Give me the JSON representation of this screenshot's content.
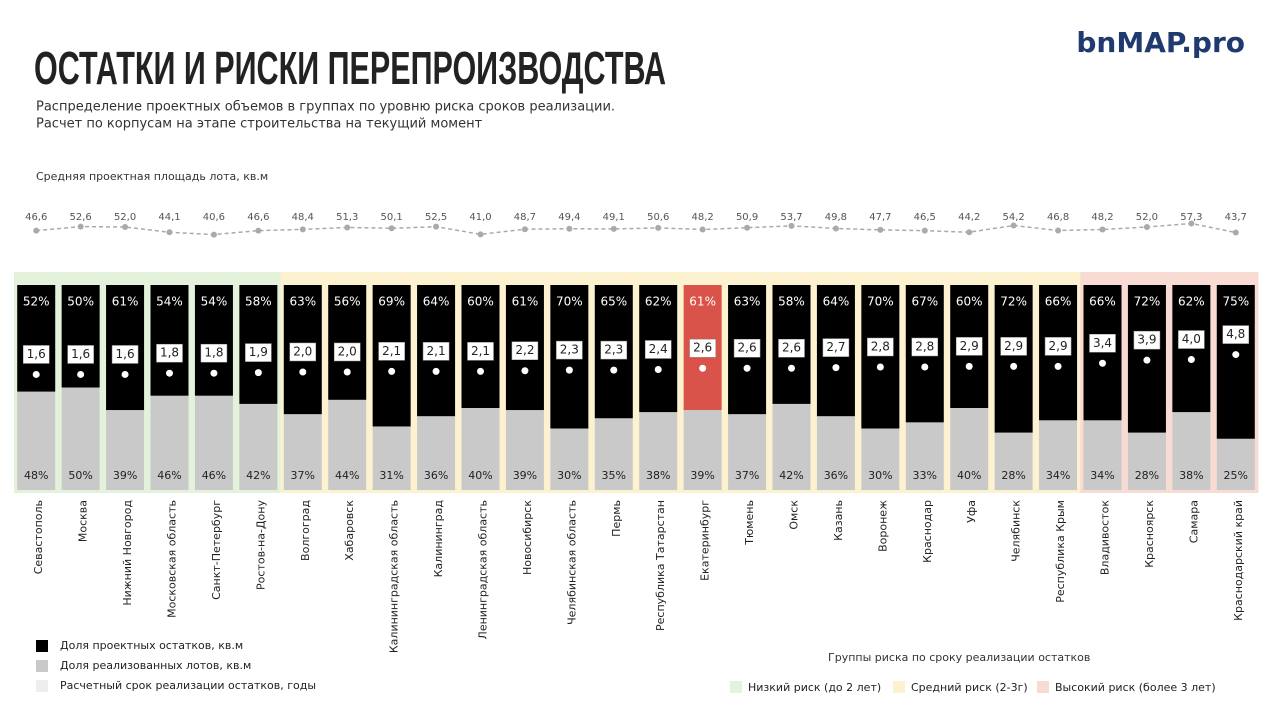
{
  "chart_data": {
    "type": "bar",
    "stacked": true,
    "title": "ОСТАТКИ И РИСКИ ПЕРЕПРОИЗВОДСТВА",
    "subtitle": [
      "Распределение проектных объемов в группах по уровню риска сроков реализации.",
      "Расчет по корпусам на этапе строительства на текущий момент"
    ],
    "logo": "bnMAP.pro",
    "categories": [
      "Севастополь",
      "Москва",
      "Нижний Новгород",
      "Московская область",
      "Санкт-Петербург",
      "Ростов-на-Дону",
      "Волгоград",
      "Хабаровск",
      "Калининградская область",
      "Калининград",
      "Ленинградская область",
      "Новосибирск",
      "Челябинская область",
      "Пермь",
      "Республика Татарстан",
      "Екатеринбург",
      "Тюмень",
      "Омск",
      "Казань",
      "Воронеж",
      "Краснодар",
      "Уфа",
      "Челябинск",
      "Республика Крым",
      "Владивосток",
      "Красноярск",
      "Самара",
      "Краснодарский край"
    ],
    "series": [
      {
        "name": "Доля проектных остатков, кв.м",
        "color": "#000000",
        "values": [
          52,
          50,
          61,
          54,
          54,
          58,
          63,
          56,
          69,
          64,
          60,
          61,
          70,
          65,
          62,
          61,
          63,
          58,
          64,
          70,
          67,
          60,
          72,
          66,
          66,
          72,
          62,
          75
        ],
        "value_labels": [
          "52%",
          "50%",
          "61%",
          "54%",
          "54%",
          "58%",
          "63%",
          "56%",
          "69%",
          "64%",
          "60%",
          "61%",
          "70%",
          "65%",
          "62%",
          "61%",
          "63%",
          "58%",
          "64%",
          "70%",
          "67%",
          "60%",
          "72%",
          "66%",
          "66%",
          "72%",
          "62%",
          "75%"
        ]
      },
      {
        "name": "Доля реализованных лотов, кв.м",
        "color": "#c9c9c9",
        "values": [
          48,
          50,
          39,
          46,
          46,
          42,
          37,
          44,
          31,
          36,
          40,
          39,
          30,
          35,
          38,
          39,
          37,
          42,
          36,
          30,
          33,
          40,
          28,
          34,
          34,
          28,
          38,
          25
        ],
        "value_labels": [
          "48%",
          "50%",
          "39%",
          "46%",
          "46%",
          "42%",
          "37%",
          "44%",
          "31%",
          "36%",
          "40%",
          "39%",
          "30%",
          "35%",
          "38%",
          "39%",
          "37%",
          "42%",
          "36%",
          "30%",
          "33%",
          "40%",
          "28%",
          "34%",
          "34%",
          "28%",
          "38%",
          "25%"
        ]
      },
      {
        "name": "Расчетный срок реализации остатков, годы",
        "color": "#eeeeee",
        "axis": "y3",
        "values": [
          1.6,
          1.6,
          1.6,
          1.8,
          1.8,
          1.9,
          2.0,
          2.0,
          2.1,
          2.1,
          2.1,
          2.2,
          2.3,
          2.3,
          2.4,
          2.6,
          2.6,
          2.6,
          2.7,
          2.8,
          2.8,
          2.9,
          2.9,
          2.9,
          3.4,
          3.9,
          4.0,
          4.8
        ],
        "value_labels": [
          "1,6",
          "1,6",
          "1,6",
          "1,8",
          "1,8",
          "1,9",
          "2,0",
          "2,0",
          "2,1",
          "2,1",
          "2,1",
          "2,2",
          "2,3",
          "2,3",
          "2,4",
          "2,6",
          "2,6",
          "2,6",
          "2,7",
          "2,8",
          "2,8",
          "2,9",
          "2,9",
          "2,9",
          "3,4",
          "3,9",
          "4,0",
          "4,8"
        ]
      },
      {
        "name": "Средняя проектная площадь лота, кв.м",
        "color": "#aaaaaa",
        "type": "line",
        "axis": "y2",
        "values": [
          46.6,
          52.6,
          52.0,
          44.1,
          40.6,
          46.6,
          48.4,
          51.3,
          50.1,
          52.5,
          41.0,
          48.7,
          49.4,
          49.1,
          50.6,
          48.2,
          50.9,
          53.7,
          49.8,
          47.7,
          46.5,
          44.2,
          54.2,
          46.8,
          48.2,
          52.0,
          57.3,
          43.7
        ],
        "value_labels": [
          "46,6",
          "52,6",
          "52,0",
          "44,1",
          "40,6",
          "46,6",
          "48,4",
          "51,3",
          "50,1",
          "52,5",
          "41,0",
          "48,7",
          "49,4",
          "49,1",
          "50,6",
          "48,2",
          "50,9",
          "53,7",
          "49,8",
          "47,7",
          "46,5",
          "44,2",
          "54,2",
          "46,8",
          "48,2",
          "52,0",
          "57,3",
          "43,7"
        ]
      }
    ],
    "ylim": [
      0,
      100
    ],
    "y2lim": [
      10,
      85
    ],
    "y3lim": [
      -17,
      16
    ],
    "highlight": {
      "category": "Екатеринбург",
      "color": "#d9534a"
    },
    "groups_title": "Группы риска по  сроку реализации остатков",
    "groups": [
      {
        "name": "Низкий риск (до 2 лет)",
        "color": "#e4f2dc",
        "members": [
          "Севастополь",
          "Москва",
          "Нижний Новгород",
          "Московская область",
          "Санкт-Петербург",
          "Ростов-на-Дону"
        ]
      },
      {
        "name": "Средний риск (2-3г)",
        "color": "#fcf2cf",
        "members": [
          "Волгоград",
          "Хабаровск",
          "Калининградская область",
          "Калининград",
          "Ленинградская область",
          "Новосибирск",
          "Челябинская область",
          "Пермь",
          "Республика Татарстан",
          "Екатеринбург",
          "Тюмень",
          "Омск",
          "Казань",
          "Воронеж",
          "Краснодар",
          "Уфа",
          "Челябинск",
          "Республика Крым"
        ]
      },
      {
        "name": "Высокий риск (более 3 лет)",
        "color": "#f8dcd4",
        "members": [
          "Владивосток",
          "Красноярск",
          "Самара",
          "Краснодарский край"
        ]
      }
    ]
  }
}
